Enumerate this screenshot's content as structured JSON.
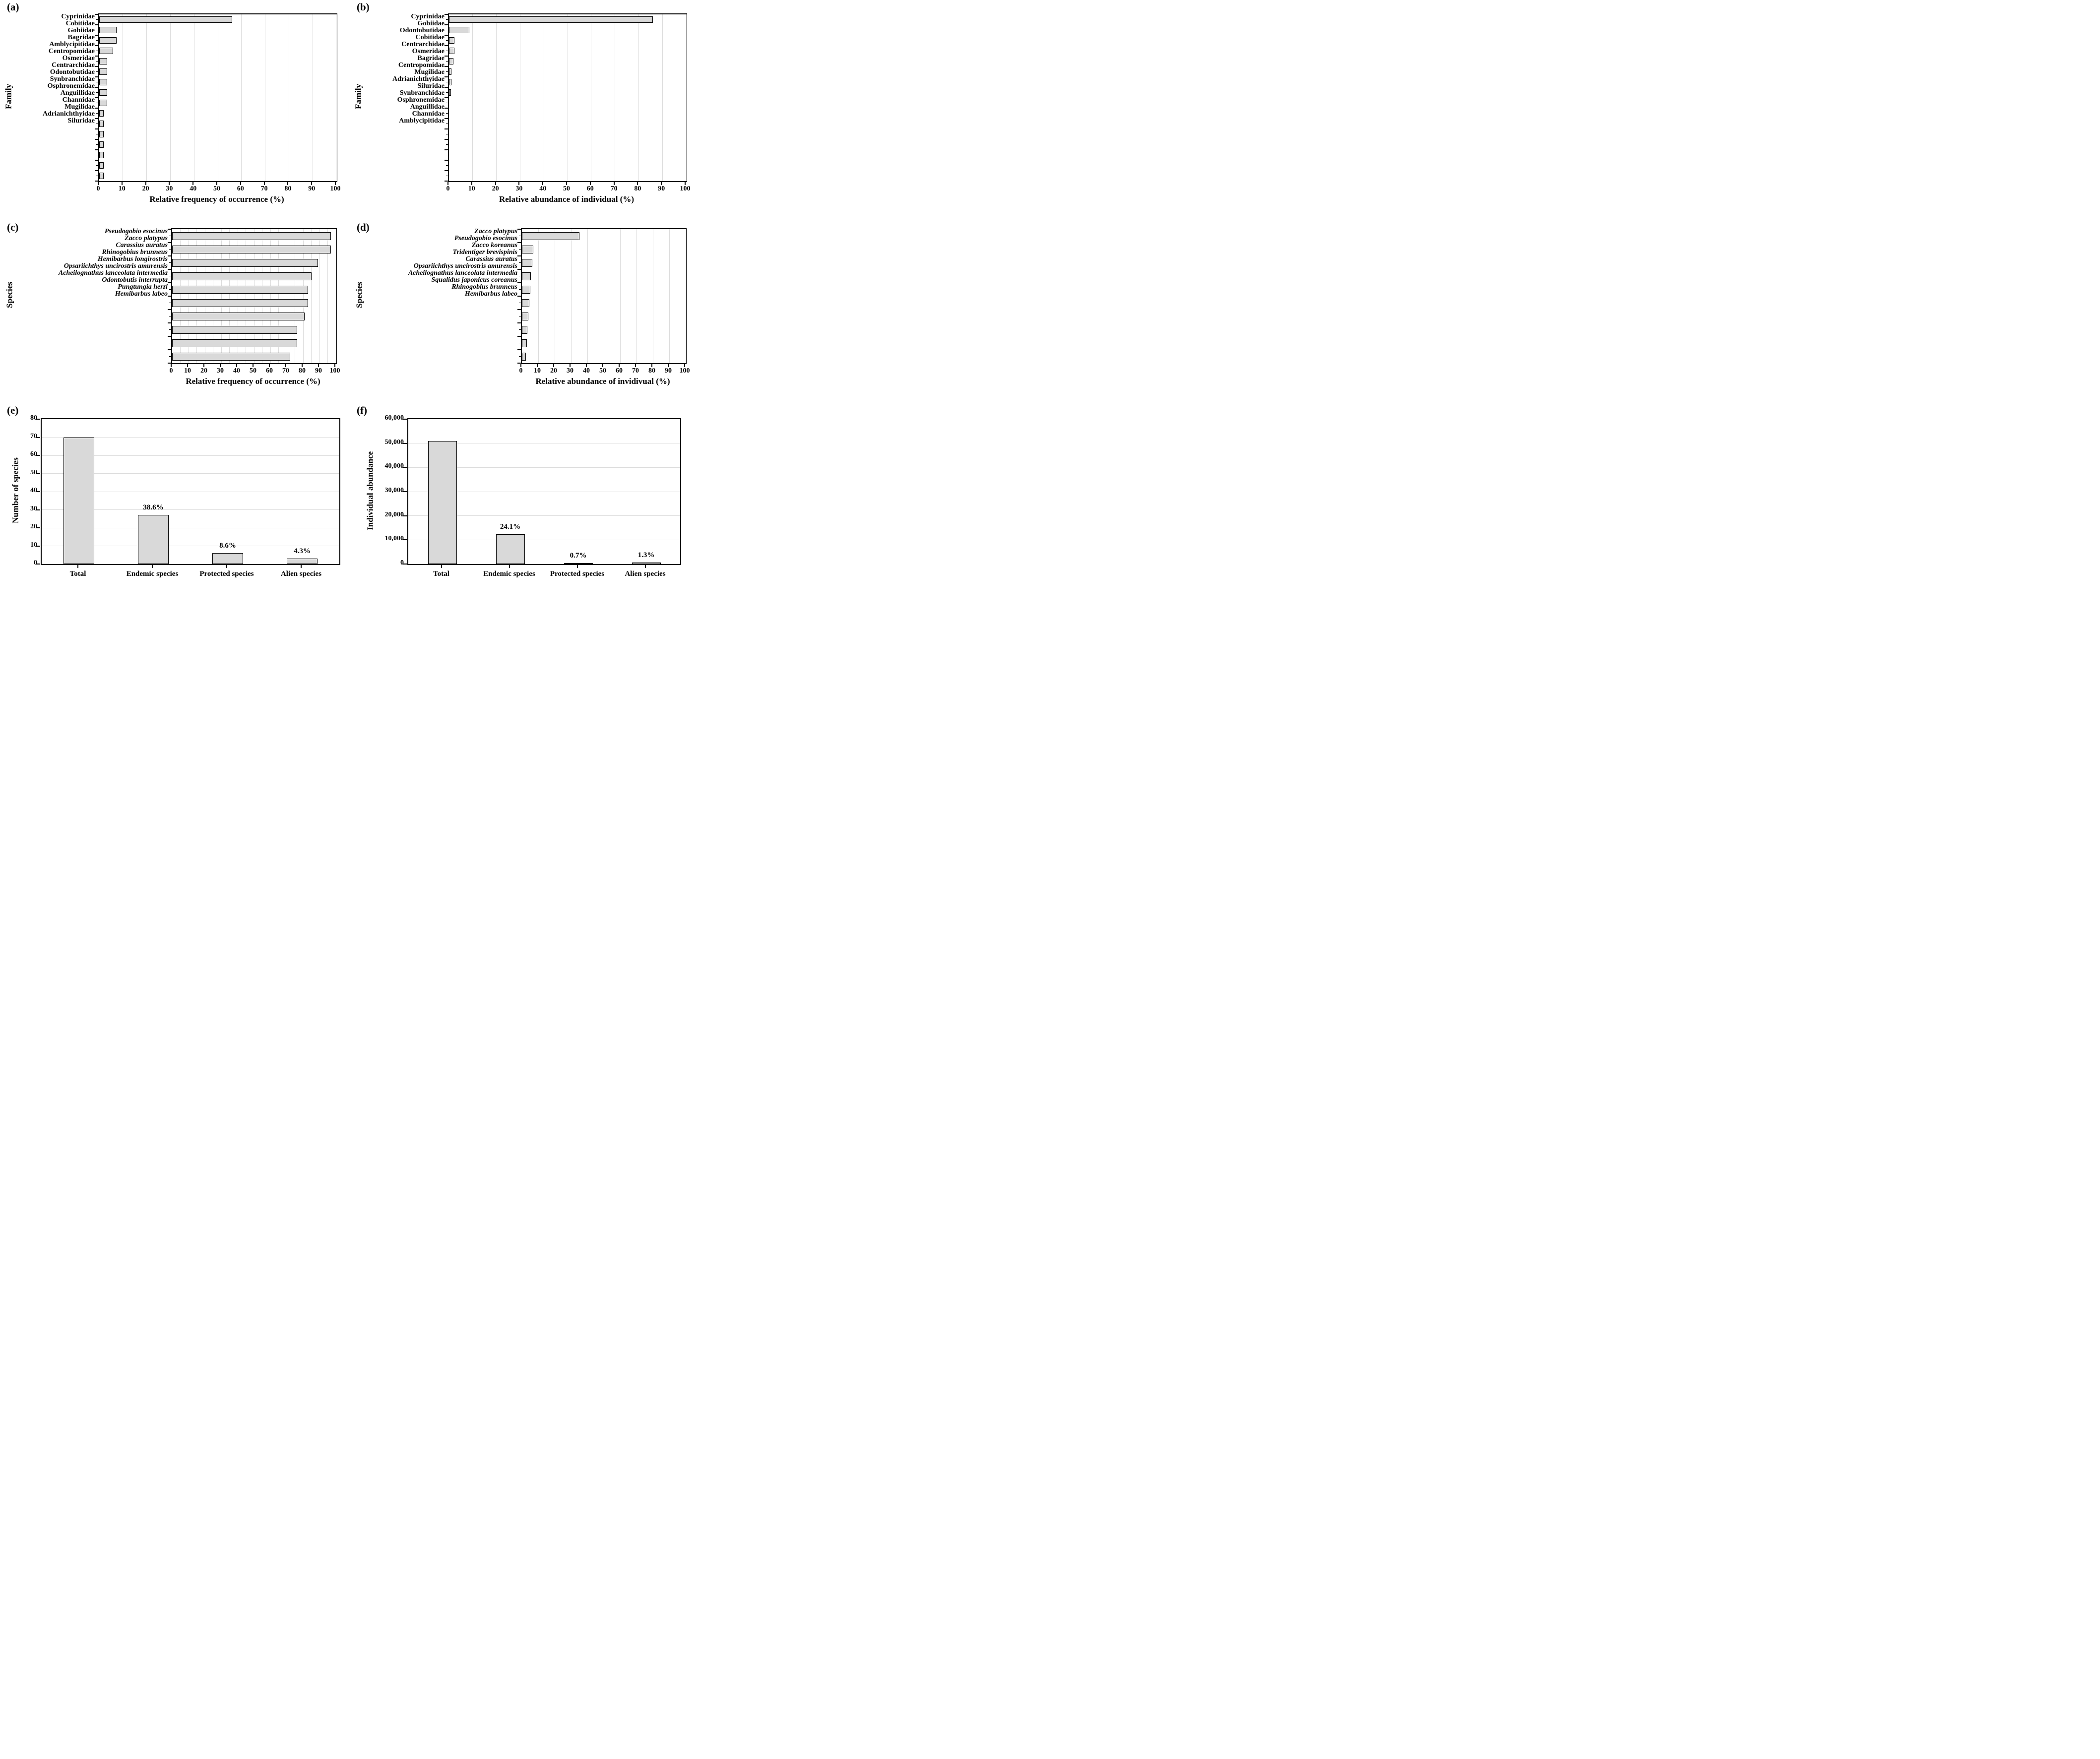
{
  "figure": {
    "background": "#ffffff",
    "bar_fill": "#d9d9d9",
    "bar_border": "#000000",
    "gridline_color": "#dcdcdc",
    "axis_color": "#000000"
  },
  "chart_data": [
    {
      "panel_label": "(a)",
      "type": "bar",
      "orientation": "horizontal",
      "ylabel": "Family",
      "xlabel": "Relative frequency of occurrence (%)",
      "xlim": [
        0,
        100
      ],
      "grid_step": 10,
      "grid_on": true,
      "italic_categories": false,
      "xticks": [
        0,
        10,
        20,
        30,
        40,
        50,
        60,
        70,
        80,
        90,
        100
      ],
      "xtick_labels": [
        "0",
        "10",
        "20",
        "30",
        "40",
        "50",
        "60",
        "70",
        "80",
        "90",
        "100"
      ],
      "categories": [
        "Cyprinidae",
        "Cobitidae",
        "Gobiidae",
        "Bagridae",
        "Amblycipitidae",
        "Centropomidae",
        "Osmeridae",
        "Centrarchidae",
        "Odontobutidae",
        "Synbranchidae",
        "Osphronemidae",
        "Anguillidae",
        "Channidae",
        "Mugilidae",
        "Adrianichthyidae",
        "Siluridae"
      ],
      "values": [
        56,
        7.4,
        7.4,
        5.9,
        3.3,
        3.3,
        3.3,
        3.3,
        3.3,
        1.8,
        1.8,
        1.8,
        1.8,
        1.8,
        1.8,
        1.8
      ]
    },
    {
      "panel_label": "(b)",
      "type": "bar",
      "orientation": "horizontal",
      "ylabel": "Family",
      "xlabel": "Relative abundance of individual (%)",
      "xlim": [
        0,
        100
      ],
      "grid_step": 10,
      "grid_on": true,
      "italic_categories": false,
      "xticks": [
        0,
        10,
        20,
        30,
        40,
        50,
        60,
        70,
        80,
        90,
        100
      ],
      "xtick_labels": [
        "0",
        "10",
        "20",
        "30",
        "40",
        "50",
        "60",
        "70",
        "80",
        "90",
        "100"
      ],
      "categories": [
        "Cyprinidae",
        "Gobiidae",
        "Odontobutidae",
        "Cobitidae",
        "Centrarchidae",
        "Osmeridae",
        "Bagridae",
        "Centropomidae",
        "Mugilidae",
        "Adrianichthyidae",
        "Siluridae",
        "Synbranchidae",
        "Osphronemidae",
        "Anguillidae",
        "Channidae",
        "Amblycipitidae"
      ],
      "values": [
        86,
        8.6,
        2.4,
        2.3,
        1.9,
        1.1,
        1.0,
        0.8,
        0.3,
        0.2,
        0.2,
        0.1,
        0.1,
        0.1,
        0.1,
        0.1
      ]
    },
    {
      "panel_label": "(c)",
      "type": "bar",
      "orientation": "horizontal",
      "ylabel": "Species",
      "xlabel": "Relative frequency of occurrence (%)",
      "xlim": [
        0,
        100
      ],
      "grid_step": 5,
      "grid_on": true,
      "italic_categories": true,
      "xticks": [
        0,
        10,
        20,
        30,
        40,
        50,
        60,
        70,
        80,
        90,
        100
      ],
      "xtick_labels": [
        "0",
        "10",
        "20",
        "30",
        "40",
        "50",
        "60",
        "70",
        "80",
        "90",
        "100"
      ],
      "categories": [
        "Pseudogobio esocinus",
        "Zacco platypus",
        "Carassius auratus",
        "Rhinogobius brunneus",
        "Hemibarbus longirostris",
        "Opsariichthys uncirostris amurensis",
        "Acheilognathus lanceolata intermedia",
        "Odontobutis interrupta",
        "Pungtungia herzi",
        "Hemibarbus labeo"
      ],
      "values": [
        97,
        97,
        89,
        85,
        83,
        83,
        81,
        76.5,
        76.5,
        72
      ]
    },
    {
      "panel_label": "(d)",
      "type": "bar",
      "orientation": "horizontal",
      "ylabel": "Species",
      "xlabel": "Relative abundance of invidivual (%)",
      "xlim": [
        0,
        100
      ],
      "grid_step": 10,
      "grid_on": true,
      "italic_categories": true,
      "xticks": [
        0,
        10,
        20,
        30,
        40,
        50,
        60,
        70,
        80,
        90,
        100
      ],
      "xtick_labels": [
        "0",
        "10",
        "20",
        "30",
        "40",
        "50",
        "60",
        "70",
        "80",
        "90",
        "100"
      ],
      "categories": [
        "Zacco platypus",
        "Pseudogobio esocinus",
        "Zacco koreanus",
        "Tridentiger brevispinis",
        "Carassius auratus",
        "Opsariichthys uncirostris amurensis",
        "Acheilognathus lanceolata intermedia",
        "Squalidus japonicus coreanus",
        "Rhinogobius brunneus",
        "Hemibarbus labeo"
      ],
      "values": [
        35,
        7,
        6.5,
        5.6,
        5.3,
        4.6,
        3.8,
        3.2,
        3.1,
        2.5
      ]
    },
    {
      "panel_label": "(e)",
      "type": "bar",
      "orientation": "vertical",
      "ylabel": "Number of species",
      "xlabel": "",
      "ylim": [
        0,
        80
      ],
      "grid_step": 10,
      "grid_on": true,
      "yticks": [
        0,
        10,
        20,
        30,
        40,
        50,
        60,
        70,
        80
      ],
      "ytick_labels": [
        "0",
        "10",
        "20",
        "30",
        "40",
        "50",
        "60",
        "70",
        "80"
      ],
      "categories": [
        "Total",
        "Endemic species",
        "Protected species",
        "Alien species"
      ],
      "values": [
        70,
        27,
        6,
        3
      ],
      "bar_labels": [
        "",
        "38.6%",
        "8.6%",
        "4.3%"
      ]
    },
    {
      "panel_label": "(f)",
      "type": "bar",
      "orientation": "vertical",
      "ylabel": "Individual abundance",
      "xlabel": "",
      "ylim": [
        0,
        60000
      ],
      "grid_step": 10000,
      "grid_on": true,
      "yticks": [
        0,
        10000,
        20000,
        30000,
        40000,
        50000,
        60000
      ],
      "ytick_labels": [
        "0",
        "10,000",
        "20,000",
        "30,000",
        "40,000",
        "50,000",
        "60,000"
      ],
      "categories": [
        "Total",
        "Endemic species",
        "Protected species",
        "Alien species"
      ],
      "values": [
        51000,
        12300,
        360,
        660
      ],
      "bar_labels": [
        "",
        "24.1%",
        "0.7%",
        "1.3%"
      ]
    }
  ]
}
